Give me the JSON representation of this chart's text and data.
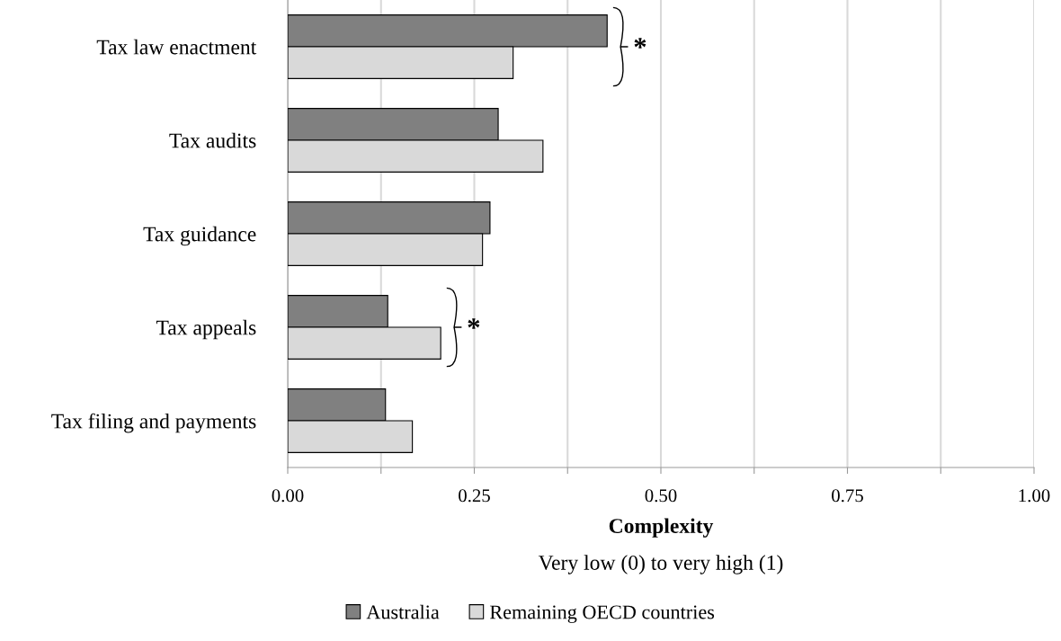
{
  "chart_data": {
    "type": "bar",
    "orientation": "horizontal",
    "categories": [
      "Tax law enactment",
      "Tax audits",
      "Tax guidance",
      "Tax appeals",
      "Tax filing and payments"
    ],
    "series": [
      {
        "name": "Australia",
        "color": "#808080",
        "values": [
          0.428,
          0.282,
          0.271,
          0.134,
          0.131
        ]
      },
      {
        "name": "Remaining OECD countries",
        "color": "#d9d9d9",
        "values": [
          0.302,
          0.342,
          0.261,
          0.205,
          0.167
        ]
      }
    ],
    "xlim": [
      0,
      1
    ],
    "xticks": [
      {
        "value": 0,
        "label": "0.00"
      },
      {
        "value": 0.125,
        "label": null
      },
      {
        "value": 0.25,
        "label": "0.25"
      },
      {
        "value": 0.375,
        "label": null
      },
      {
        "value": 0.5,
        "label": "0.50"
      },
      {
        "value": 0.625,
        "label": null
      },
      {
        "value": 0.75,
        "label": "0.75"
      },
      {
        "value": 0.875,
        "label": null
      },
      {
        "value": 1,
        "label": "1.00"
      }
    ],
    "xlabel": "Complexity",
    "grid": "x",
    "legend": "bottom",
    "annotations": [
      "*",
      "*",
      "Very low (0) to very high (1)"
    ]
  }
}
